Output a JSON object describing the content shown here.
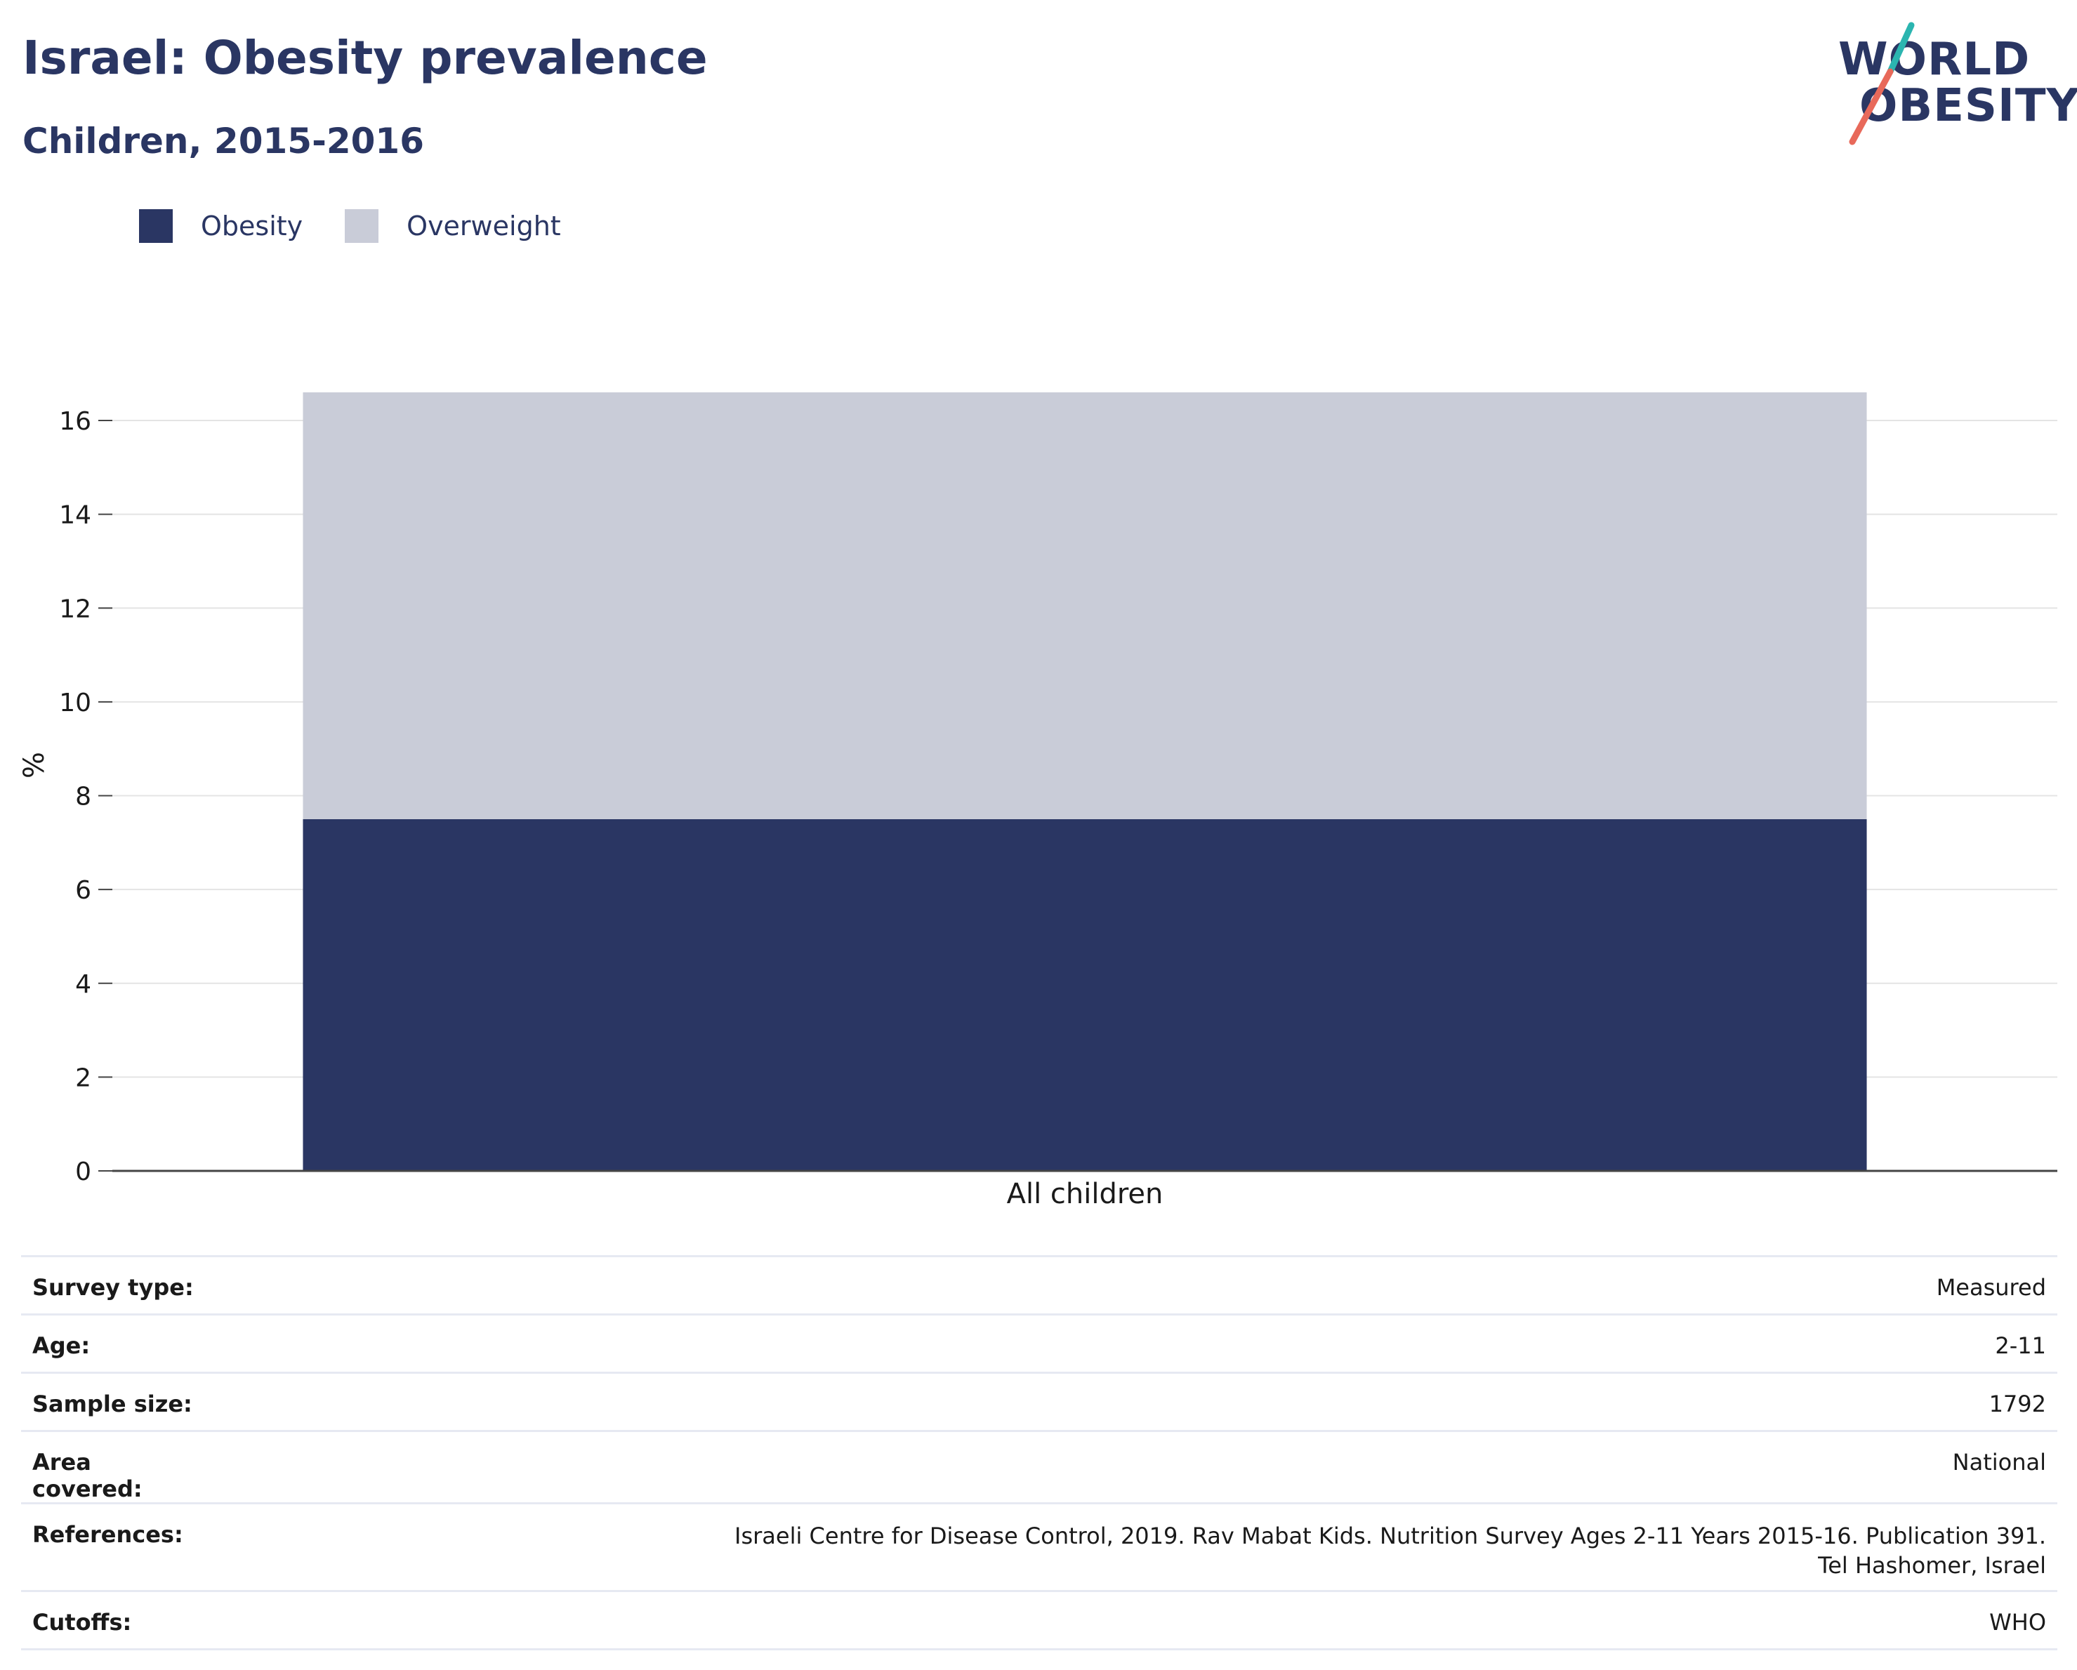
{
  "header": {
    "title": "Israel: Obesity prevalence",
    "subtitle": "Children, 2015-2016"
  },
  "logo": {
    "line1": "WORLD",
    "line2": "OBESITY",
    "accent_teal": "#2bb5b0",
    "accent_coral": "#e8695a"
  },
  "legend": [
    {
      "label": "Obesity",
      "color": "#2a3663"
    },
    {
      "label": "Overweight",
      "color": "#c9ccd8"
    }
  ],
  "chart_data": {
    "type": "bar",
    "stacked": true,
    "categories": [
      "All children"
    ],
    "series": [
      {
        "name": "Obesity",
        "values": [
          7.5
        ],
        "color": "#2a3663"
      },
      {
        "name": "Overweight",
        "values": [
          9.1
        ],
        "color": "#c9ccd8"
      }
    ],
    "ylabel": "%",
    "ylim": [
      0,
      16.6
    ],
    "yticks": [
      0,
      2,
      4,
      6,
      8,
      10,
      12,
      14,
      16
    ],
    "grid": true,
    "legend_position": "top-left"
  },
  "info": [
    {
      "key": "Survey type:",
      "value": "Measured"
    },
    {
      "key": "Age:",
      "value": "2-11"
    },
    {
      "key": "Sample size:",
      "value": "1792"
    },
    {
      "key": "Area covered:",
      "value": "National"
    },
    {
      "key": "References:",
      "value": "Israeli Centre for Disease Control, 2019. Rav Mabat Kids. Nutrition Survey Ages 2-11 Years 2015-16. Publication 391. Tel Hashomer, Israel"
    },
    {
      "key": "Cutoffs:",
      "value": "WHO"
    }
  ]
}
